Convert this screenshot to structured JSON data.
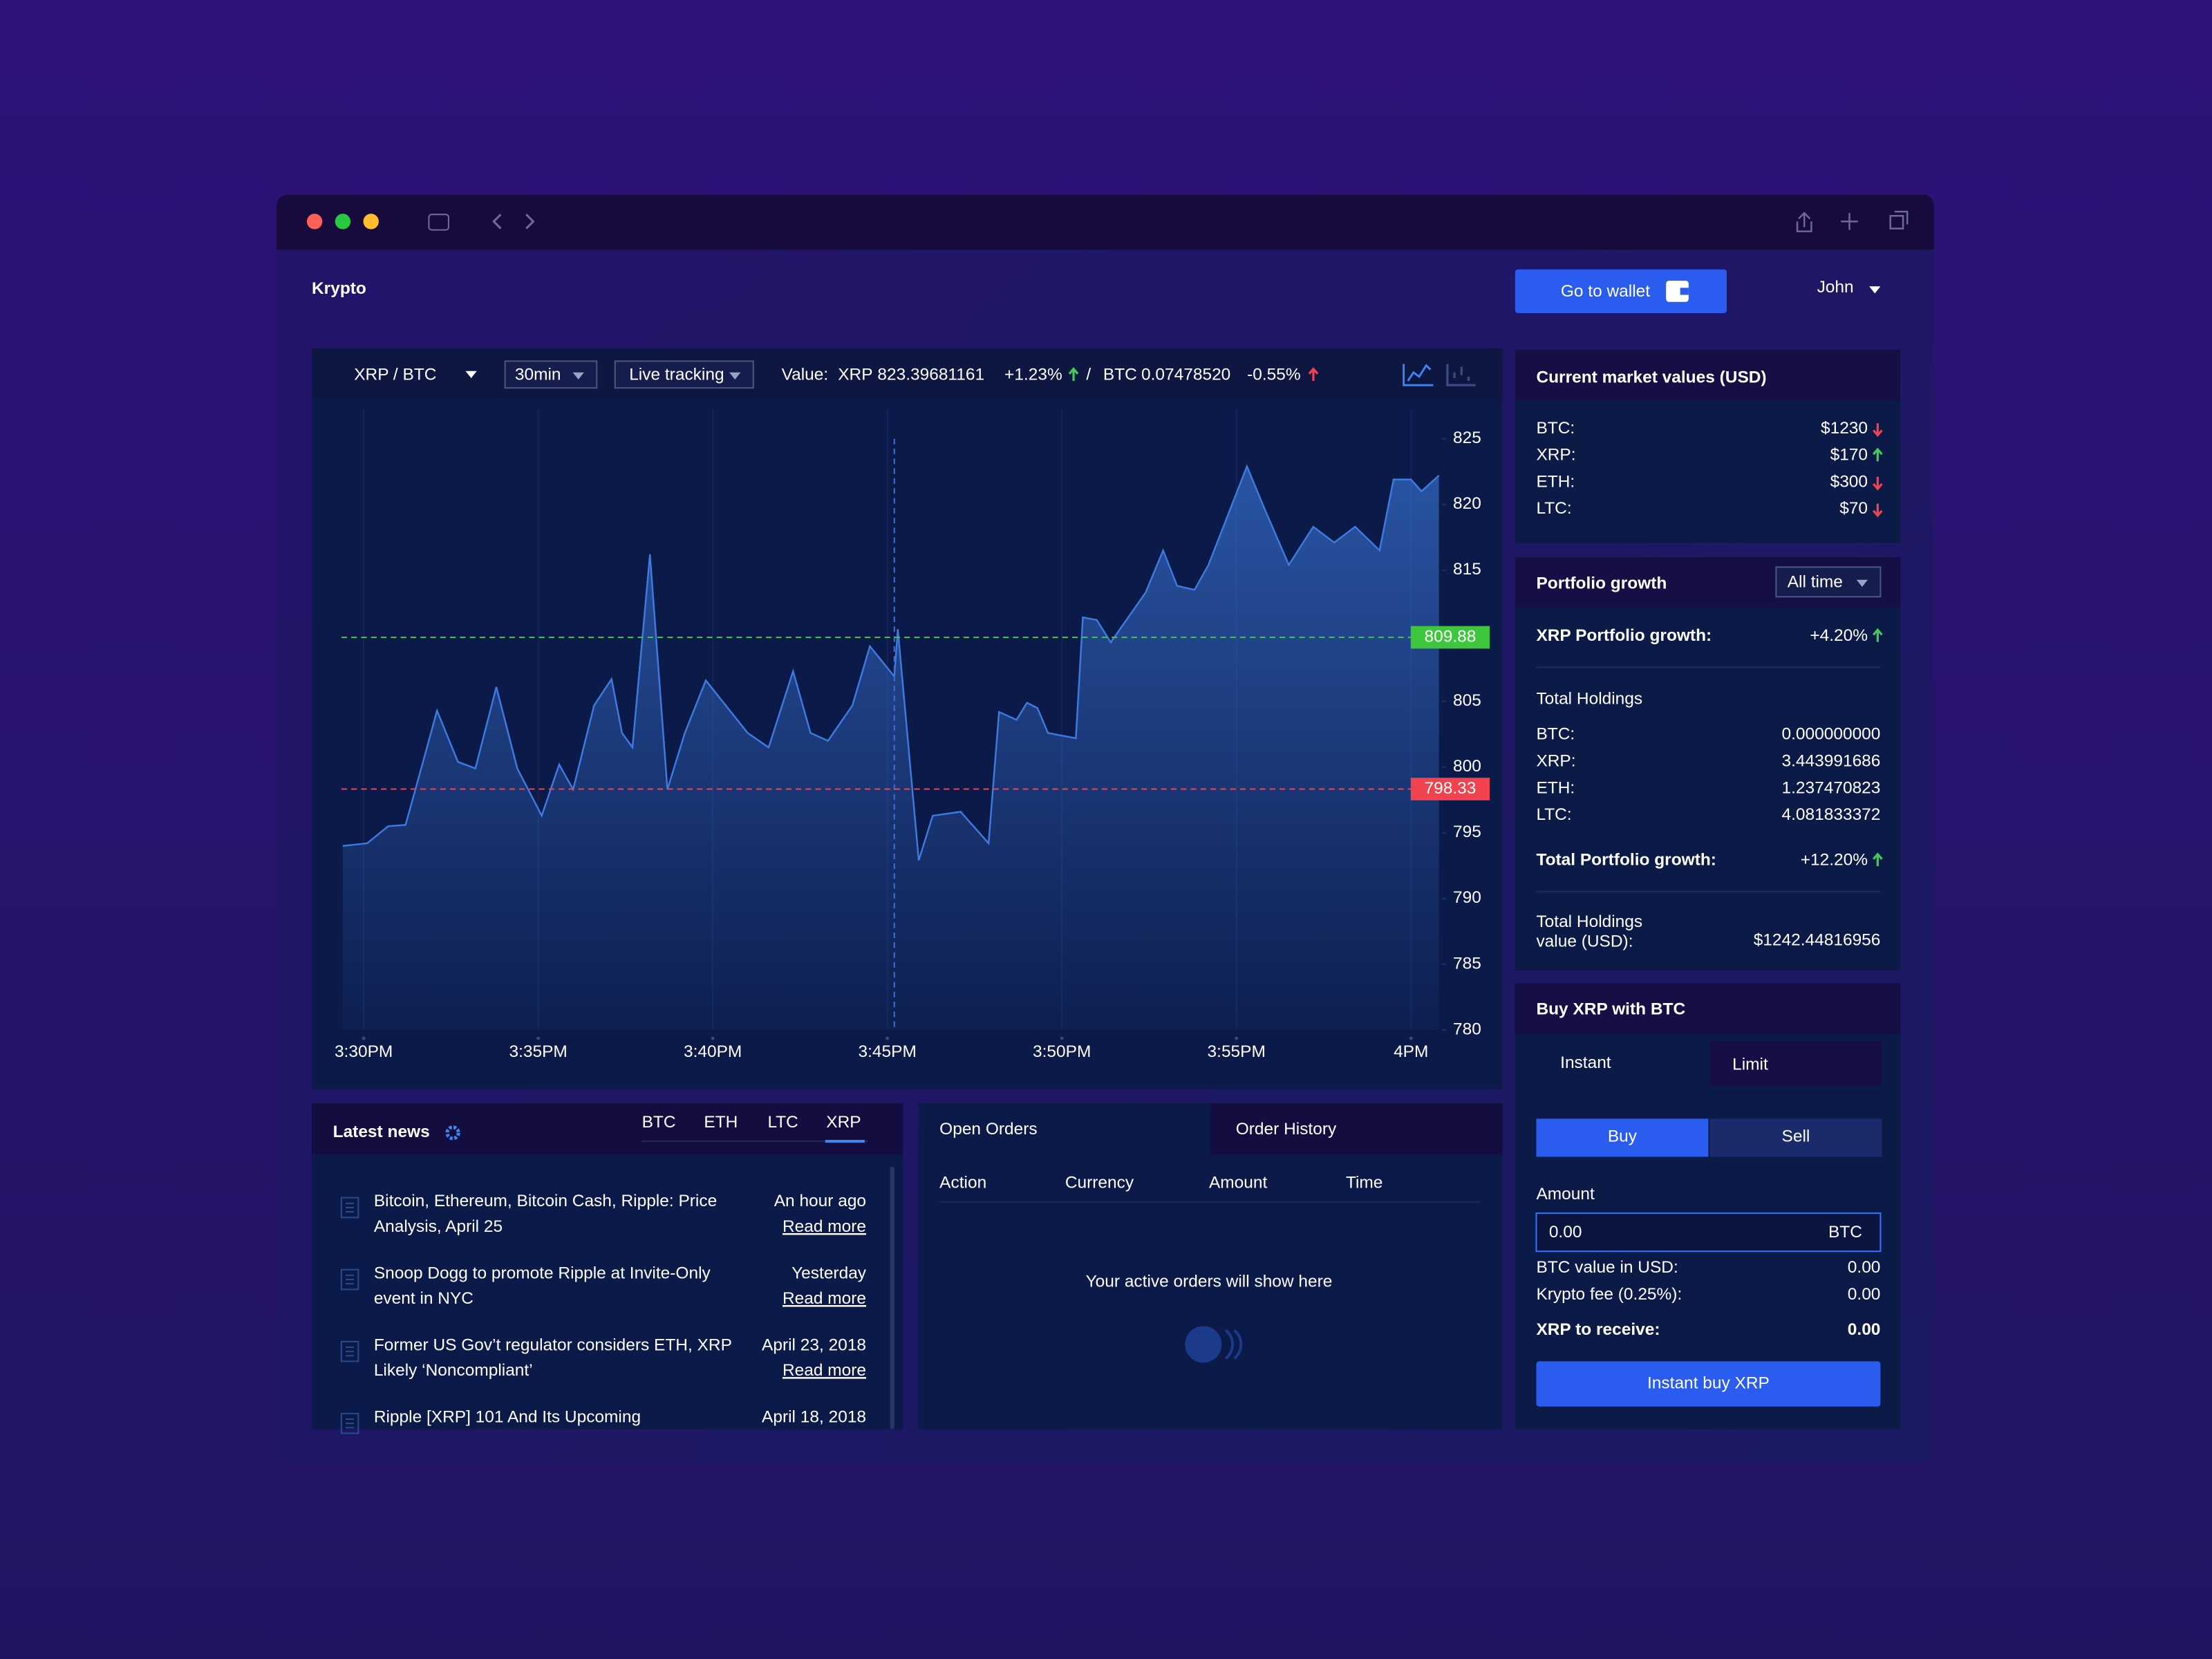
{
  "header": {
    "title": "Krypto",
    "wallet_button": "Go to wallet",
    "user": "John"
  },
  "toolbar": {
    "pair": "XRP / BTC",
    "interval": "30min",
    "mode": "Live tracking",
    "value_label": "Value:",
    "xrp_label": "XRP",
    "xrp_value": "823.39681161",
    "xrp_change": "+1.23%",
    "separator": "/",
    "btc_label": "BTC",
    "btc_value": "0.07478520",
    "btc_change": "-0.55%"
  },
  "chart_data": {
    "type": "area",
    "color": "#3d7be0",
    "grid": true,
    "x": [
      929.4,
      930.1,
      930.7,
      931.2,
      931.7,
      932.1,
      932.7,
      933.2,
      933.8,
      934.4,
      935.1,
      935.6,
      936.0,
      936.6,
      937.1,
      937.4,
      937.7,
      938.2,
      938.7,
      939.2,
      939.8,
      941.0,
      941.6,
      942.3,
      942.8,
      943.3,
      944.0,
      944.5,
      945.2,
      945.3,
      945.9,
      946.3,
      947.1,
      947.9,
      948.2,
      948.7,
      949.0,
      949.3,
      949.6,
      950.4,
      950.6,
      951.0,
      951.4,
      952.4,
      952.9,
      953.3,
      953.8,
      954.2,
      955.3,
      955.8,
      956.5,
      957.2,
      957.8,
      958.4,
      959.1,
      959.5,
      960.0,
      960.3,
      960.8
    ],
    "values": [
      794.0,
      794.2,
      795.5,
      795.6,
      800.4,
      804.3,
      800.4,
      799.9,
      806.1,
      799.9,
      796.3,
      800.2,
      798.3,
      804.7,
      806.7,
      802.6,
      801.5,
      816.2,
      798.3,
      802.6,
      806.6,
      802.6,
      801.5,
      807.3,
      802.6,
      802.0,
      804.7,
      809.2,
      806.9,
      810.5,
      792.9,
      796.3,
      796.6,
      794.2,
      804.2,
      803.6,
      804.9,
      804.5,
      802.6,
      802.2,
      811.4,
      811.2,
      809.5,
      813.3,
      816.5,
      813.8,
      813.5,
      815.4,
      822.9,
      819.7,
      815.4,
      818.3,
      817.1,
      818.3,
      816.5,
      821.9,
      821.9,
      821.0,
      822.2
    ],
    "xlim": [
      929.2,
      960.8
    ],
    "ylim": [
      780,
      825
    ],
    "xticks": [
      {
        "value": 930,
        "label": "3:30PM"
      },
      {
        "value": 935,
        "label": "3:35PM"
      },
      {
        "value": 940,
        "label": "3:40PM"
      },
      {
        "value": 945,
        "label": "3:45PM"
      },
      {
        "value": 950,
        "label": "3:50PM"
      },
      {
        "value": 955,
        "label": "3:55PM"
      },
      {
        "value": 960,
        "label": "4PM"
      }
    ],
    "yticks": [
      780,
      785,
      790,
      795,
      800,
      805,
      810,
      815,
      820,
      825
    ],
    "reference_lines": [
      {
        "value": 809.88,
        "color": "#3ec73e"
      },
      {
        "value": 798.33,
        "color": "#f0434f"
      }
    ],
    "crosshair_x": 945.2
  },
  "market": {
    "title": "Current market values (USD)",
    "rows": [
      {
        "coin": "BTC:",
        "value": "$1230",
        "trend": "down"
      },
      {
        "coin": "XRP:",
        "value": "$170",
        "trend": "up"
      },
      {
        "coin": "ETH:",
        "value": "$300",
        "trend": "down"
      },
      {
        "coin": "LTC:",
        "value": "$70",
        "trend": "down"
      }
    ]
  },
  "portfolio": {
    "title": "Portfolio growth",
    "range": "All time",
    "xrp_growth_label": "XRP Portfolio growth:",
    "xrp_growth": "+4.20%",
    "holdings_title": "Total Holdings",
    "holdings": [
      [
        "BTC:",
        "0.000000000"
      ],
      [
        "XRP:",
        "3.443991686"
      ],
      [
        "ETH:",
        "1.237470823"
      ],
      [
        "LTC:",
        "4.081833372"
      ]
    ],
    "total_growth_label": "Total Portfolio growth:",
    "total_growth": "+12.20%",
    "value_label": [
      "Total Holdings",
      "value (USD):"
    ],
    "value": "$1242.44816956"
  },
  "trade": {
    "title": "Buy XRP with BTC",
    "tabs": [
      "Instant",
      "Limit"
    ],
    "sides": [
      "Buy",
      "Sell"
    ],
    "amount_label": "Amount",
    "amount": "0.00",
    "amount_unit": "BTC",
    "rows": [
      [
        "BTC value in USD:",
        "0.00"
      ],
      [
        "Krypto fee (0.25%):",
        "0.00"
      ]
    ],
    "receive_label": "XRP to receive:",
    "receive": "0.00",
    "button": "Instant buy XRP"
  },
  "news": {
    "title": "Latest news",
    "tabs": [
      "BTC",
      "ETH",
      "LTC",
      "XRP"
    ],
    "items": [
      {
        "lines": [
          "Bitcoin, Ethereum, Bitcoin Cash, Ripple: Price",
          "Analysis, April 25"
        ],
        "time": "An hour ago",
        "link": "Read more"
      },
      {
        "lines": [
          "Snoop Dogg to promote Ripple at Invite-Only",
          "event in NYC"
        ],
        "time": "Yesterday",
        "link": "Read more"
      },
      {
        "lines": [
          "Former US Gov’t regulator considers ETH, XRP",
          "Likely ‘Noncompliant’"
        ],
        "time": "April 23, 2018",
        "link": "Read more"
      },
      {
        "lines": [
          "Ripple [XRP] 101 And Its Upcoming"
        ],
        "time": "April 18, 2018"
      }
    ]
  },
  "orders": {
    "tabs": [
      "Open Orders",
      "Order History"
    ],
    "columns": [
      "Action",
      "Currency",
      "Amount",
      "Time"
    ],
    "empty": "Your active orders will show here"
  }
}
